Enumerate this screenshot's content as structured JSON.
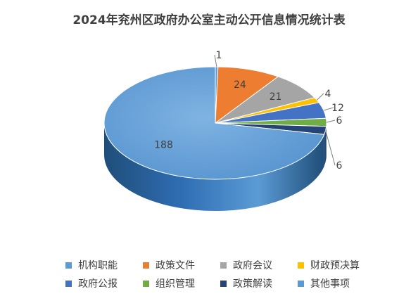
{
  "chart_data": {
    "type": "pie",
    "title": "2024年兖州区政府办公室主动公开信息情况统计表",
    "categories": [
      "机构职能",
      "政策文件",
      "政府会议",
      "财政预决算",
      "政府公报",
      "组织管理",
      "政策解读",
      "其他事项"
    ],
    "values": [
      1,
      24,
      21,
      4,
      12,
      6,
      6,
      188
    ],
    "colors": [
      "#5B9BD5",
      "#ED7D31",
      "#A5A5A5",
      "#FFC000",
      "#4472C4",
      "#70AD47",
      "#264478",
      "#5B9BD5"
    ],
    "legend_position": "bottom",
    "style": "3d"
  }
}
